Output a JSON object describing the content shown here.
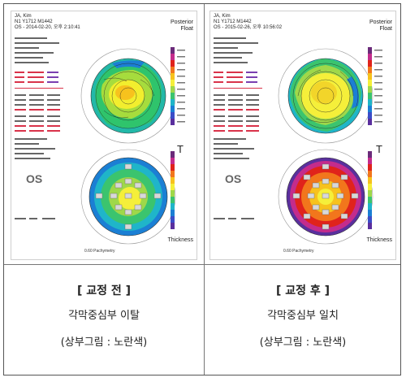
{
  "panels": [
    {
      "name": "JA, Kim",
      "id": "N1 Y1712 M1442",
      "exam": "OS - 2014-02-20, 오후 2:10:41",
      "eye": "OS",
      "scale_top": "Posterior",
      "scale_top2": "Float",
      "thickness": "Thickness",
      "side_letter": "T",
      "footer_left": "0.60 Pachymetry",
      "caption_title": "[ 교정 전 ]",
      "caption_line1": "각막중심부 이탈",
      "caption_line2": "(상부그림 : 노란색)"
    },
    {
      "name": "JA, Kim",
      "id": "N1 Y1712 M1442",
      "exam": "OS - 2015-02-26, 오후 10:56:02",
      "eye": "OS",
      "scale_top": "Posterior",
      "scale_top2": "Float",
      "thickness": "Thickness",
      "side_letter": "T",
      "footer_left": "0.60 Pachymetry",
      "caption_title": "[ 교정 후 ]",
      "caption_line1": "각막중심부 일치",
      "caption_line2": "(상부그림 : 노란색)"
    }
  ],
  "colors": {
    "border": "#555555",
    "scale": [
      "#6b2b7a",
      "#c42c8c",
      "#e0231b",
      "#f2761c",
      "#f7c21d",
      "#f5ef3a",
      "#9fd84a",
      "#3bc46e",
      "#1fb5c9",
      "#1b7fd4",
      "#3b4dc8",
      "#5a2f9e"
    ]
  }
}
